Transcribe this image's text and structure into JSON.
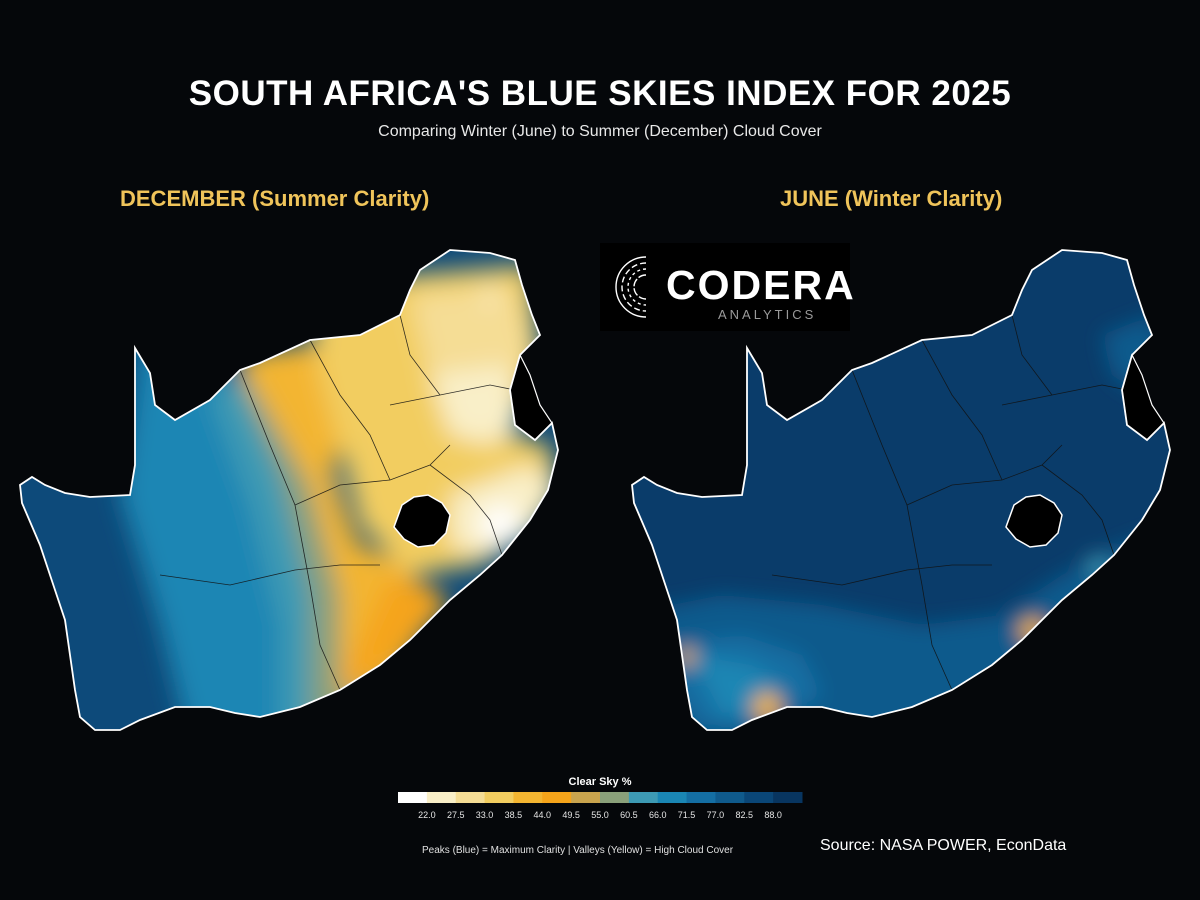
{
  "header": {
    "title": "SOUTH AFRICA'S BLUE SKIES INDEX FOR 2025",
    "subtitle": "Comparing Winter (June) to Summer (December) Cloud Cover"
  },
  "panels": [
    {
      "id": "december",
      "title": "DECEMBER (Summer Clarity)"
    },
    {
      "id": "june",
      "title": "JUNE (Winter Clarity)"
    }
  ],
  "logo": {
    "word": "CODERA",
    "sub": "ANALYTICS"
  },
  "legend": {
    "title": "Clear Sky %",
    "ticks": [
      "22.0",
      "27.5",
      "33.0",
      "38.5",
      "44.0",
      "49.5",
      "55.0",
      "60.5",
      "66.0",
      "71.5",
      "77.0",
      "82.5",
      "88.0"
    ],
    "colors": [
      "#ffffff",
      "#f9efc8",
      "#f5dd95",
      "#f2cd60",
      "#f3b531",
      "#f5a41a",
      "#c9a44e",
      "#8aa07a",
      "#3d9ab4",
      "#1a86b4",
      "#146ea3",
      "#0f5a8c",
      "#0a4677",
      "#083560"
    ]
  },
  "footnote": "Peaks (Blue) = Maximum Clarity | Valleys (Yellow) = High Cloud Cover",
  "source": "Source: NASA POWER, EconData"
}
